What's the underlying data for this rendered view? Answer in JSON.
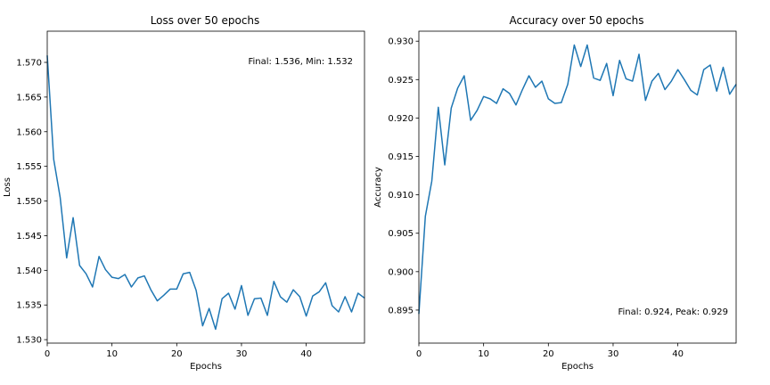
{
  "chart_data": [
    {
      "type": "line",
      "title": "Loss over 50 epochs",
      "xlabel": "Epochs",
      "ylabel": "Loss",
      "annotation": "Final: 1.536, Min: 1.532",
      "color": "#1f77b4",
      "xlim": [
        0,
        49
      ],
      "ylim": [
        1.5295,
        1.5745
      ],
      "xticks": [
        0,
        10,
        20,
        30,
        40
      ],
      "yticks": [
        1.53,
        1.535,
        1.54,
        1.545,
        1.55,
        1.555,
        1.56,
        1.565,
        1.57
      ],
      "ytick_labels": [
        "1.530",
        "1.535",
        "1.540",
        "1.545",
        "1.550",
        "1.555",
        "1.560",
        "1.565",
        "1.570"
      ],
      "grid": false,
      "x": [
        0,
        1,
        2,
        3,
        4,
        5,
        6,
        7,
        8,
        9,
        10,
        11,
        12,
        13,
        14,
        15,
        16,
        17,
        18,
        19,
        20,
        21,
        22,
        23,
        24,
        25,
        26,
        27,
        28,
        29,
        30,
        31,
        32,
        33,
        34,
        35,
        36,
        37,
        38,
        39,
        40,
        41,
        42,
        43,
        44,
        45,
        46,
        47,
        48,
        49
      ],
      "y": [
        1.571,
        1.556,
        1.5505,
        1.5418,
        1.5476,
        1.5407,
        1.5395,
        1.5376,
        1.542,
        1.5401,
        1.539,
        1.5388,
        1.5394,
        1.5376,
        1.5389,
        1.5392,
        1.5372,
        1.5356,
        1.5364,
        1.5373,
        1.5373,
        1.5395,
        1.5397,
        1.5371,
        1.532,
        1.5345,
        1.5315,
        1.5359,
        1.5367,
        1.5344,
        1.5378,
        1.5335,
        1.5359,
        1.536,
        1.5335,
        1.5384,
        1.5362,
        1.5354,
        1.5372,
        1.5362,
        1.5334,
        1.5363,
        1.5369,
        1.5382,
        1.5349,
        1.534,
        1.5362,
        1.534,
        1.5367,
        1.536
      ]
    },
    {
      "type": "line",
      "title": "Accuracy over 50 epochs",
      "xlabel": "Epochs",
      "ylabel": "Accuracy",
      "annotation": "Final: 0.924, Peak: 0.929",
      "color": "#1f77b4",
      "xlim": [
        0,
        49
      ],
      "ylim": [
        0.8907,
        0.9313
      ],
      "xticks": [
        0,
        10,
        20,
        30,
        40
      ],
      "yticks": [
        0.895,
        0.9,
        0.905,
        0.91,
        0.915,
        0.92,
        0.925,
        0.93
      ],
      "ytick_labels": [
        "0.895",
        "0.900",
        "0.905",
        "0.910",
        "0.915",
        "0.920",
        "0.925",
        "0.930"
      ],
      "grid": false,
      "x": [
        0,
        1,
        2,
        3,
        4,
        5,
        6,
        7,
        8,
        9,
        10,
        11,
        12,
        13,
        14,
        15,
        16,
        17,
        18,
        19,
        20,
        21,
        22,
        23,
        24,
        25,
        26,
        27,
        28,
        29,
        30,
        31,
        32,
        33,
        34,
        35,
        36,
        37,
        38,
        39,
        40,
        41,
        42,
        43,
        44,
        45,
        46,
        47,
        48,
        49
      ],
      "y": [
        0.8945,
        0.9072,
        0.9118,
        0.9214,
        0.9139,
        0.9213,
        0.9239,
        0.9255,
        0.9197,
        0.921,
        0.9228,
        0.9225,
        0.9219,
        0.9238,
        0.9232,
        0.9217,
        0.9237,
        0.9255,
        0.924,
        0.9248,
        0.9225,
        0.9219,
        0.922,
        0.9244,
        0.9295,
        0.9267,
        0.9295,
        0.9252,
        0.9249,
        0.9271,
        0.9229,
        0.9275,
        0.9251,
        0.9248,
        0.9283,
        0.9223,
        0.9248,
        0.9258,
        0.9237,
        0.9248,
        0.9263,
        0.925,
        0.9236,
        0.923,
        0.9263,
        0.9269,
        0.9235,
        0.9266,
        0.9231,
        0.9244
      ]
    }
  ]
}
